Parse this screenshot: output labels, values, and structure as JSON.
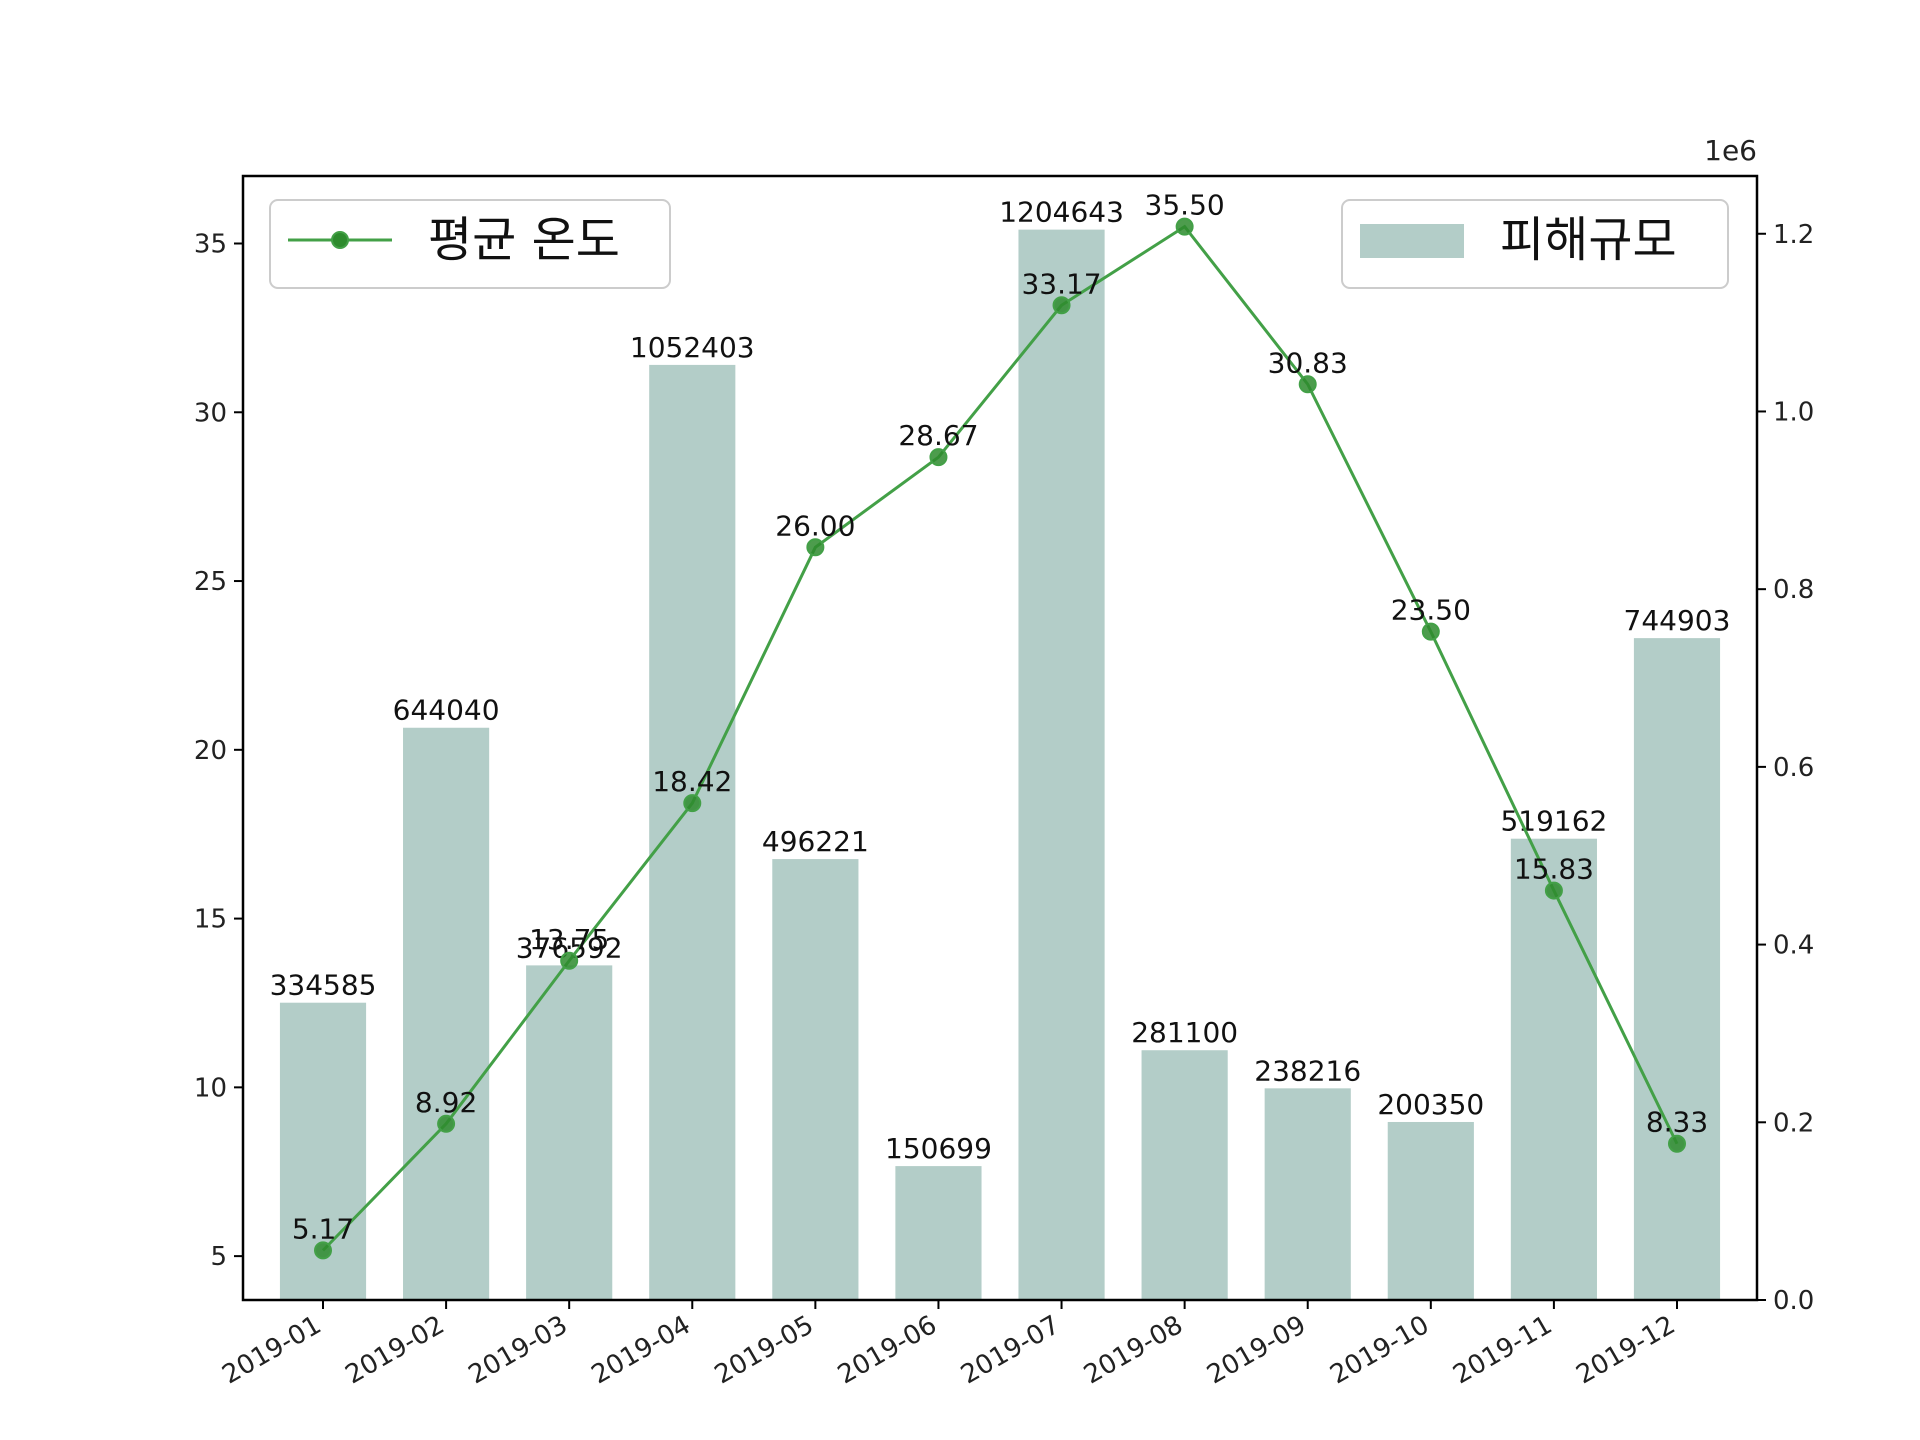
{
  "chart_data": {
    "type": "bar+line",
    "categories": [
      "2019-01",
      "2019-02",
      "2019-03",
      "2019-04",
      "2019-05",
      "2019-06",
      "2019-07",
      "2019-08",
      "2019-09",
      "2019-10",
      "2019-11",
      "2019-12"
    ],
    "series": [
      {
        "name": "피해규모",
        "type": "bar",
        "axis": "right",
        "values": [
          334585,
          644040,
          376592,
          1052403,
          496221,
          150699,
          1204643,
          281100,
          238216,
          200350,
          519162,
          744903
        ],
        "labels": [
          "334585",
          "644040",
          "376592",
          "1052403",
          "496221",
          "150699",
          "1204643",
          "281100",
          "238216",
          "200350",
          "519162",
          "744903"
        ]
      },
      {
        "name": "평균 온도",
        "type": "line",
        "axis": "left",
        "values": [
          5.17,
          8.92,
          13.75,
          18.42,
          26.0,
          28.67,
          33.17,
          35.5,
          30.83,
          23.5,
          15.83,
          8.33
        ],
        "labels": [
          "5.17",
          "8.92",
          "13.75",
          "18.42",
          "26.00",
          "28.67",
          "33.17",
          "35.50",
          "30.83",
          "23.50",
          "15.83",
          "8.33"
        ]
      }
    ],
    "y_left": {
      "ylim": [
        3.7,
        37.0
      ],
      "ticks": [
        5,
        10,
        15,
        20,
        25,
        30,
        35
      ],
      "tick_labels": [
        "5",
        "10",
        "15",
        "20",
        "25",
        "30",
        "35"
      ]
    },
    "y_right": {
      "ylim": [
        0,
        1265000
      ],
      "ticks": [
        0,
        200000,
        400000,
        600000,
        800000,
        1000000,
        1200000
      ],
      "tick_labels": [
        "0.0",
        "0.2",
        "0.4",
        "0.6",
        "0.8",
        "1.0",
        "1.2"
      ],
      "offset_label": "1e6"
    },
    "legend_left": {
      "label": "평균 온도",
      "placement": "top-left"
    },
    "legend_right": {
      "label": "피해규모",
      "placement": "top-right"
    },
    "colors": {
      "bar": "#b3cdc8",
      "line": "#43a047",
      "marker": "#2e8b2e",
      "axis": "#000000"
    },
    "grid": false
  }
}
